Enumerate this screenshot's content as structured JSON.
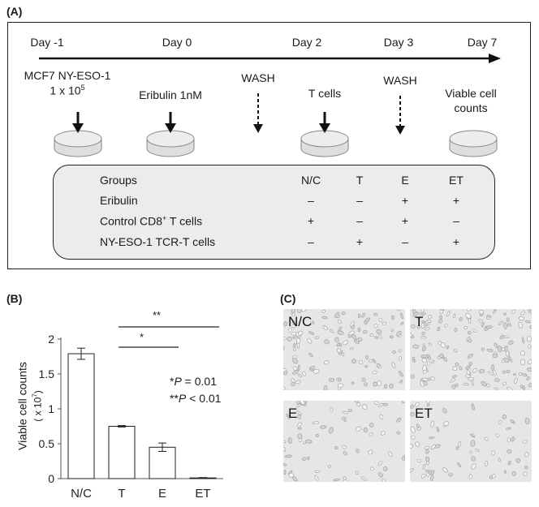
{
  "panel_a": {
    "label": "(A)",
    "timeline": [
      "Day -1",
      "Day 0",
      "Day 2",
      "Day 3",
      "Day 7"
    ],
    "steps": {
      "mcf7_line1": "MCF7 NY-ESO-1",
      "mcf7_line2": "1 x 10",
      "mcf7_exp": "5",
      "eribulin": "Eribulin 1nM",
      "wash1": "WASH",
      "tcells": "T cells",
      "wash2": "WASH",
      "viable_line1": "Viable cell",
      "viable_line2": "counts"
    },
    "table": {
      "headers": [
        "Groups",
        "N/C",
        "T",
        "E",
        "ET"
      ],
      "rows": [
        {
          "name": "Eribulin",
          "name_sup": "",
          "name_suffix": "",
          "values": [
            "–",
            "–",
            "+",
            "+"
          ]
        },
        {
          "name": "Control CD8",
          "name_sup": "+",
          "name_suffix": " T cells",
          "values": [
            "+",
            "–",
            "+",
            "–"
          ]
        },
        {
          "name": "NY-ESO-1 TCR-T cells",
          "name_sup": "",
          "name_suffix": "",
          "values": [
            "–",
            "+",
            "–",
            "+"
          ]
        }
      ]
    }
  },
  "panel_b": {
    "label": "(B)",
    "sig1": "*",
    "sig2": "**",
    "note_line1_prefix": "*",
    "note_line1_p": "P",
    "note_line1_rest": " = 0.01",
    "note_line2_prefix": "**",
    "note_line2_p": "P",
    "note_line2_rest": " < 0.01"
  },
  "chart_data": {
    "type": "bar",
    "categories": [
      "N/C",
      "T",
      "E",
      "ET"
    ],
    "values": [
      1.79,
      0.75,
      0.45,
      0.01
    ],
    "errors": [
      0.08,
      0.01,
      0.06,
      0.005
    ],
    "yticks": [
      "0",
      "0.5",
      "1",
      "1.5",
      "2"
    ],
    "ylim": [
      0,
      2
    ],
    "ylabel_line1": "Viable cell counts",
    "ylabel_line2": "( x 10",
    "ylabel_exp": "7",
    "ylabel_close": ")"
  },
  "panel_c": {
    "label": "(C)",
    "images": [
      "N/C",
      "T",
      "E",
      "ET"
    ]
  },
  "colors": {
    "ink": "#1a1a1a",
    "petri": "#e4e4e4",
    "table_bg": "#ececec",
    "micro_bg": "#e6e6e6"
  }
}
